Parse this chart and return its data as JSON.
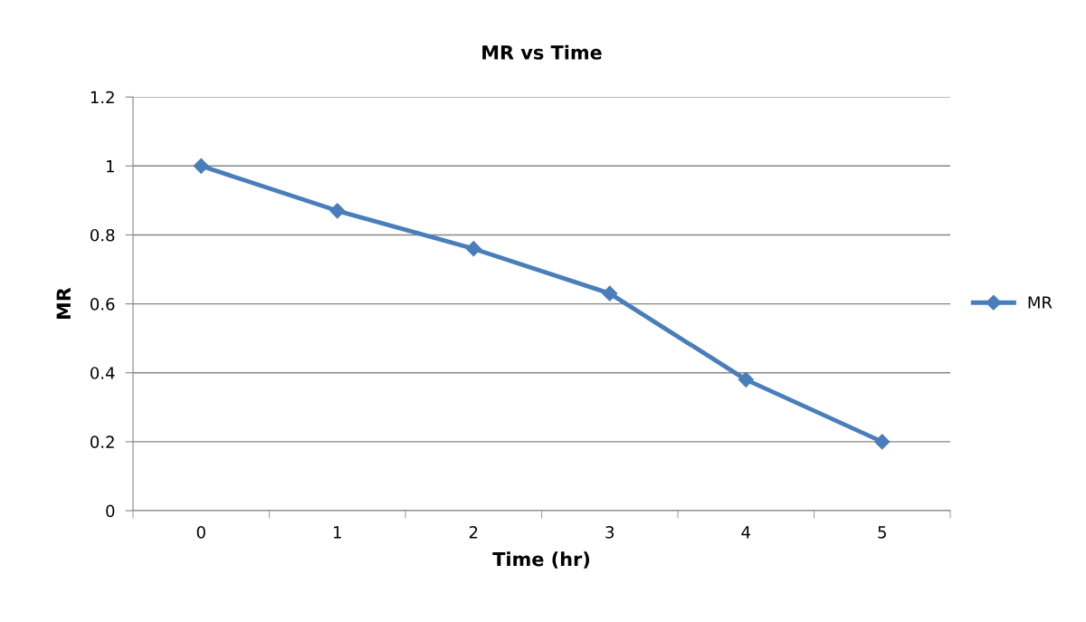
{
  "chart_data": {
    "type": "line",
    "title": "MR vs Time",
    "xlabel": "Time (hr)",
    "ylabel": "MR",
    "categories": [
      "0",
      "1",
      "2",
      "3",
      "4",
      "5"
    ],
    "series": [
      {
        "name": "MR",
        "color": "#4a7ebb",
        "values": [
          1,
          0.87,
          0.76,
          0.63,
          0.38,
          0.2
        ]
      }
    ],
    "ylim": [
      0,
      1.2
    ],
    "yticks": [
      0,
      0.2,
      0.4,
      0.6,
      0.8,
      1,
      1.2
    ],
    "grid": "y",
    "legend": "right",
    "marker": "diamond",
    "line_style": "solid"
  }
}
